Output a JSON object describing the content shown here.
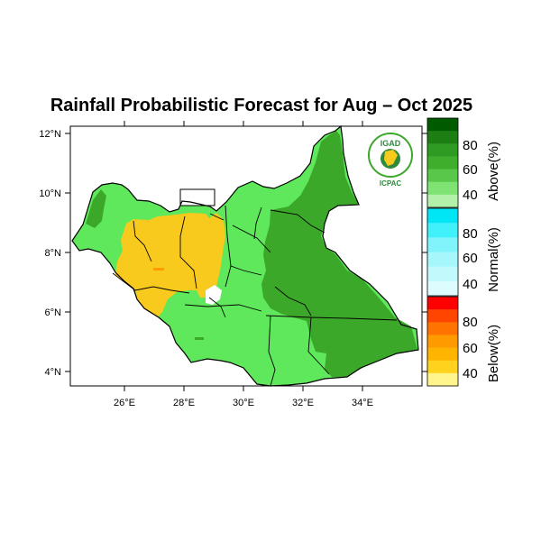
{
  "title": "Rainfall Probabilistic Forecast for Aug – Oct 2025",
  "logo": {
    "top_text": "IGAD",
    "bottom_text": "ICPAC"
  },
  "axes": {
    "lon_labels": [
      "26°E",
      "28°E",
      "30°E",
      "32°E",
      "34°E"
    ],
    "lat_labels": [
      "12°N",
      "10°N",
      "8°N",
      "6°N",
      "4°N"
    ]
  },
  "legend": {
    "above": {
      "title": "Above(%)",
      "ticks": [
        "80",
        "60",
        "40"
      ],
      "colors": [
        "#005a00",
        "#1d7e14",
        "#2f9b23",
        "#3fae2c",
        "#58c74a",
        "#7ee373",
        "#b3f0a9"
      ]
    },
    "normal": {
      "title": "Normal(%)",
      "ticks": [
        "80",
        "60",
        "40"
      ],
      "colors": [
        "#00e6f5",
        "#40f0fa",
        "#80f4fa",
        "#a6f7fb",
        "#c2f9fc",
        "#dcfcfd"
      ]
    },
    "below": {
      "title": "Below(%)",
      "ticks": [
        "80",
        "60",
        "40"
      ],
      "colors": [
        "#ff0000",
        "#ff4500",
        "#ff7300",
        "#ff9a00",
        "#ffb400",
        "#ffd21e",
        "#fff58c"
      ]
    }
  },
  "map_colors": {
    "above_light": "#5fe85b",
    "above_dark": "#3ca82a",
    "below": "#f9ca1e",
    "nodata": "#ffffff"
  }
}
